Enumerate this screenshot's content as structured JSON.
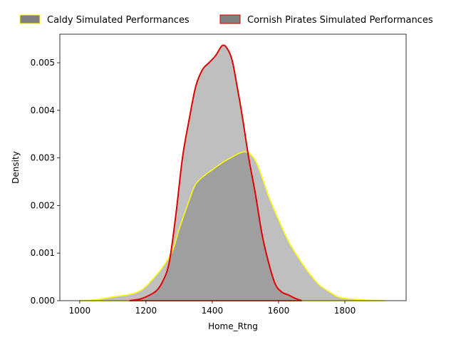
{
  "chart_data": {
    "type": "area",
    "title": "",
    "xlabel": "Home_Rtng",
    "ylabel": "Density",
    "xlim": [
      940,
      1985
    ],
    "ylim": [
      0,
      0.0056
    ],
    "xticks": [
      1000,
      1200,
      1400,
      1600,
      1800
    ],
    "xtick_labels": [
      "1000",
      "1200",
      "1400",
      "1600",
      "1800"
    ],
    "yticks": [
      0.0,
      0.001,
      0.002,
      0.003,
      0.004,
      0.005
    ],
    "ytick_labels": [
      "0.000",
      "0.001",
      "0.002",
      "0.003",
      "0.004",
      "0.005"
    ],
    "grid": false,
    "legend_position": "top-center",
    "series": [
      {
        "name": "Caldy Simulated Performances",
        "fill_color": "#808080",
        "line_color": "#ffff00",
        "points": [
          [
            1000,
            0.0
          ],
          [
            1050,
            2e-05
          ],
          [
            1100,
            8e-05
          ],
          [
            1150,
            0.00013
          ],
          [
            1180,
            0.0002
          ],
          [
            1200,
            0.0003
          ],
          [
            1220,
            0.00045
          ],
          [
            1250,
            0.0007
          ],
          [
            1280,
            0.00105
          ],
          [
            1300,
            0.0015
          ],
          [
            1330,
            0.0021
          ],
          [
            1350,
            0.00245
          ],
          [
            1380,
            0.00265
          ],
          [
            1400,
            0.00275
          ],
          [
            1430,
            0.0029
          ],
          [
            1460,
            0.00302
          ],
          [
            1490,
            0.00312
          ],
          [
            1510,
            0.0031
          ],
          [
            1530,
            0.00295
          ],
          [
            1550,
            0.0026
          ],
          [
            1570,
            0.0022
          ],
          [
            1600,
            0.0017
          ],
          [
            1630,
            0.00125
          ],
          [
            1660,
            0.0009
          ],
          [
            1690,
            0.0006
          ],
          [
            1720,
            0.00035
          ],
          [
            1750,
            0.0002
          ],
          [
            1780,
            8e-05
          ],
          [
            1800,
            5e-05
          ],
          [
            1850,
            2e-05
          ],
          [
            1920,
            0.0
          ]
        ]
      },
      {
        "name": "Cornish Pirates Simulated Performances",
        "fill_color": "#808080",
        "line_color": "#e00000",
        "points": [
          [
            1150,
            0.0
          ],
          [
            1180,
            3e-05
          ],
          [
            1200,
            8e-05
          ],
          [
            1230,
            0.0002
          ],
          [
            1250,
            0.0004
          ],
          [
            1270,
            0.0008
          ],
          [
            1290,
            0.0018
          ],
          [
            1310,
            0.003
          ],
          [
            1330,
            0.0038
          ],
          [
            1350,
            0.0045
          ],
          [
            1370,
            0.00485
          ],
          [
            1390,
            0.005
          ],
          [
            1410,
            0.00515
          ],
          [
            1430,
            0.00536
          ],
          [
            1445,
            0.0053
          ],
          [
            1460,
            0.00505
          ],
          [
            1475,
            0.0045
          ],
          [
            1490,
            0.0039
          ],
          [
            1510,
            0.003
          ],
          [
            1530,
            0.00225
          ],
          [
            1550,
            0.0014
          ],
          [
            1570,
            0.0008
          ],
          [
            1590,
            0.00035
          ],
          [
            1610,
            0.00018
          ],
          [
            1630,
            0.00012
          ],
          [
            1650,
            5e-05
          ],
          [
            1670,
            0.0
          ]
        ]
      }
    ]
  }
}
